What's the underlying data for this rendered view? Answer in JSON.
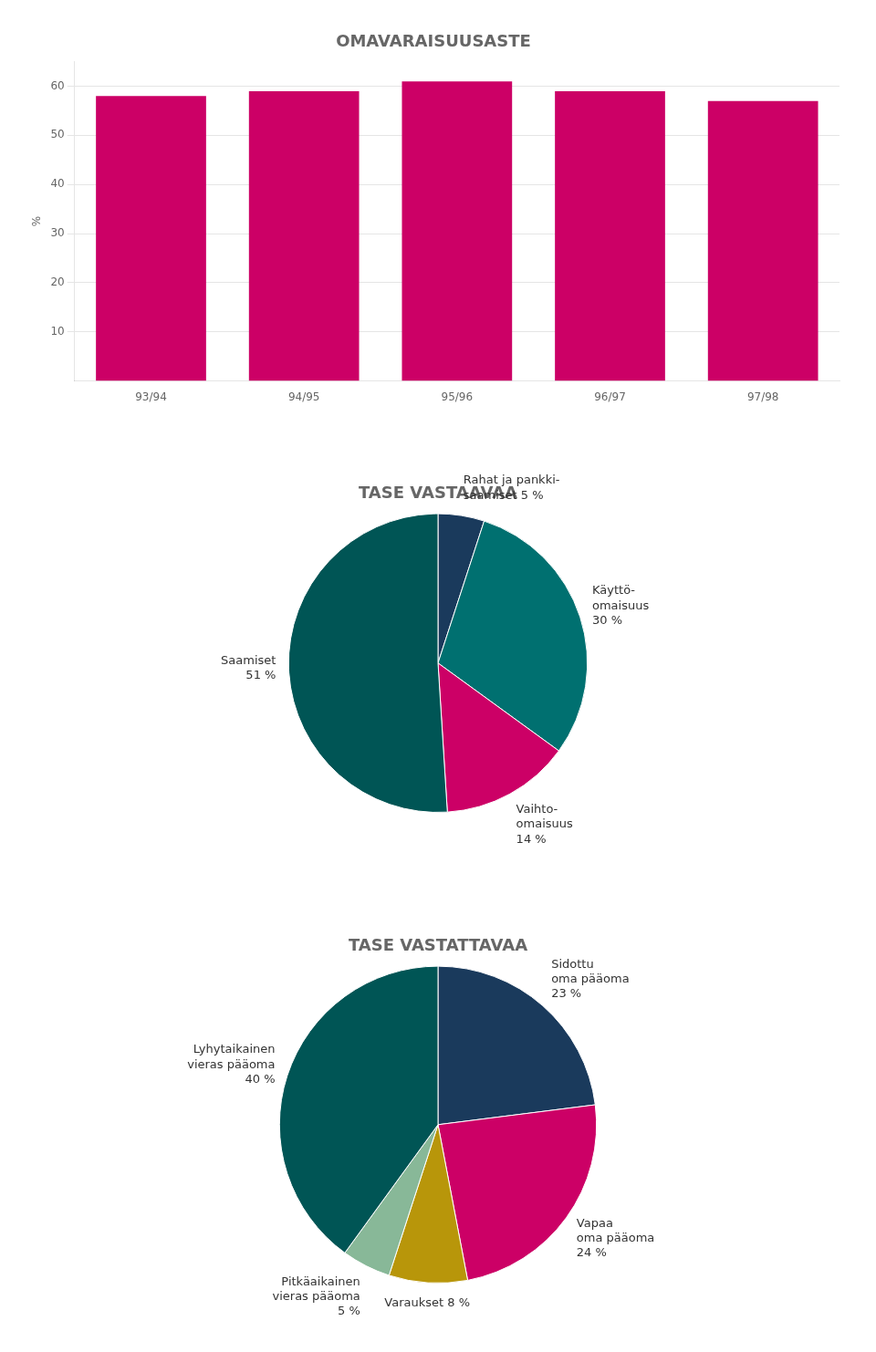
{
  "chart_data": [
    {
      "type": "bar",
      "title": "OMAVARAISUUSASTE",
      "y_label": "%",
      "categories": [
        "93/94",
        "94/95",
        "95/96",
        "96/97",
        "97/98"
      ],
      "values": [
        58,
        59,
        61,
        59,
        57
      ],
      "color": "#cc0066",
      "ylim": [
        0,
        65
      ],
      "yticks": [
        10,
        20,
        30,
        40,
        50,
        60
      ],
      "grid": true
    },
    {
      "type": "pie",
      "title": "TASE VASTAAVAA",
      "categories": [
        "Rahat ja pankki-\nsaamiset 5 %",
        "Käyttö-\nomaisuus\n30 %",
        "Vaihto-\nomaisuus\n14 %",
        "Saamiset\n51 %"
      ],
      "values": [
        5,
        30,
        14,
        51
      ],
      "colors": [
        "#1a3a5c",
        "#007070",
        "#cc0066",
        "#005555"
      ]
    },
    {
      "type": "pie",
      "title": "TASE VASTATTAVAA",
      "categories": [
        "Sidottu\noma pääoma\n23 %",
        "Vapaa\noma pääoma\n24 %",
        "Varaukset 8 %",
        "Pitkäaikainen\nvieras pääoma\n5 %",
        "Lyhytaikainen\nvieras pääoma\n40 %"
      ],
      "values": [
        23,
        24,
        8,
        5,
        40
      ],
      "colors": [
        "#1a3a5c",
        "#cc0066",
        "#b8960a",
        "#88b898",
        "#005555"
      ]
    }
  ]
}
